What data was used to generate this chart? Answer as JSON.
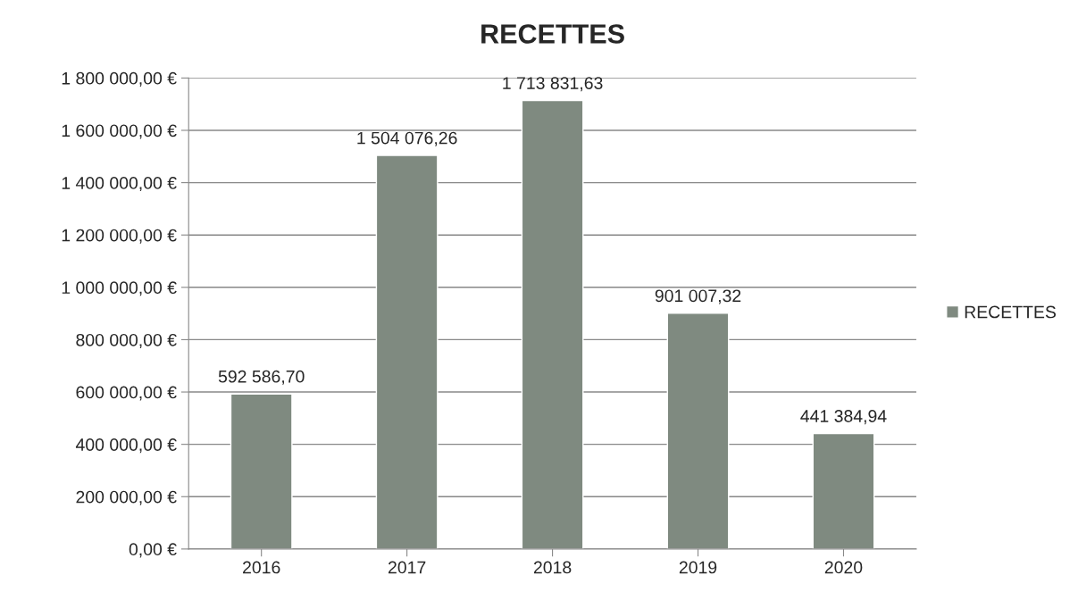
{
  "chart_data": {
    "type": "bar",
    "title": "RECETTES",
    "categories": [
      "2016",
      "2017",
      "2018",
      "2019",
      "2020"
    ],
    "series": [
      {
        "name": "RECETTES",
        "color": "#7f8a80",
        "values": [
          592586.7,
          1504076.26,
          1713831.63,
          901007.32,
          441384.94
        ],
        "value_labels": [
          "592 586,70",
          "1 504 076,26",
          "1 713 831,63",
          "901 007,32",
          "441 384,94"
        ]
      }
    ],
    "ylim": [
      0,
      1800000
    ],
    "yticks": [
      {
        "value": 0,
        "label": "0,00 €"
      },
      {
        "value": 200000,
        "label": "200 000,00 €"
      },
      {
        "value": 400000,
        "label": "400 000,00 €"
      },
      {
        "value": 600000,
        "label": "600 000,00 €"
      },
      {
        "value": 800000,
        "label": "800 000,00 €"
      },
      {
        "value": 1000000,
        "label": "1 000 000,00 €"
      },
      {
        "value": 1200000,
        "label": "1 200 000,00 €"
      },
      {
        "value": 1400000,
        "label": "1 400 000,00 €"
      },
      {
        "value": 1600000,
        "label": "1 600 000,00 €"
      },
      {
        "value": 1800000,
        "label": "1 800 000,00 €"
      }
    ],
    "grid": "y",
    "legend": "right"
  }
}
